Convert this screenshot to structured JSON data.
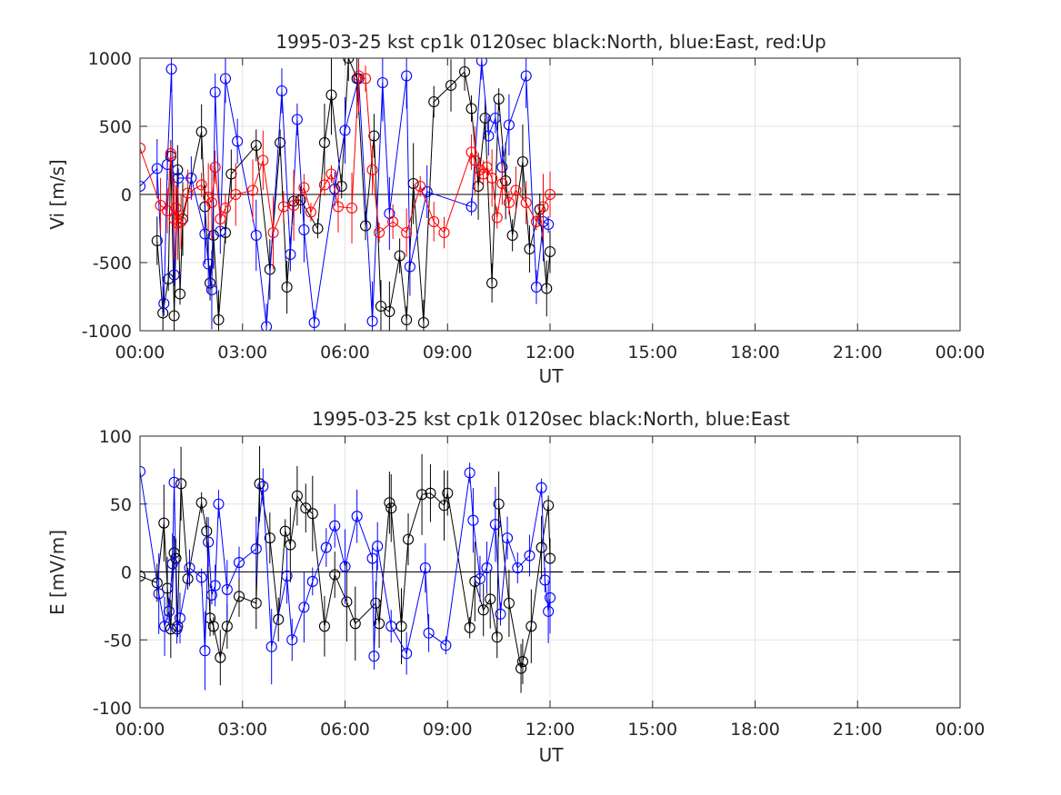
{
  "chart_data": [
    {
      "type": "line",
      "title": "1995-03-25 kst cp1k 0120sec black:North, blue:East, red:Up",
      "xlabel": "UT",
      "ylabel": "Vi [m/s]",
      "xlim": [
        0,
        24
      ],
      "ylim": [
        -1000,
        1000
      ],
      "xticks": [
        "00:00",
        "03:00",
        "06:00",
        "09:00",
        "12:00",
        "15:00",
        "18:00",
        "21:00",
        "00:00"
      ],
      "yticks": [
        "1000",
        "500",
        "0",
        "-500",
        "-1000"
      ],
      "grid": true,
      "colors": {
        "North": "#000000",
        "East": "#0000ff",
        "Up": "#ff0000"
      },
      "series": [
        {
          "color": "black",
          "error_bars": true,
          "marker": "circle",
          "x": [
            0.5,
            0.67,
            0.83,
            0.9,
            1.0,
            1.1,
            1.17,
            1.25,
            1.8,
            1.9,
            2.05,
            2.15,
            2.3,
            2.5,
            2.67,
            3.4,
            3.8,
            4.1,
            4.3,
            4.5,
            4.7,
            5.2,
            5.4,
            5.6,
            5.9,
            6.1,
            6.35,
            6.6,
            6.85,
            7.05,
            7.3,
            7.6,
            7.8,
            8.0,
            8.3,
            8.6,
            9.1,
            9.5,
            9.7,
            9.9,
            10.1,
            10.3,
            10.5,
            10.7,
            10.9,
            11.2,
            11.4,
            11.7,
            11.9,
            12.0
          ],
          "y": [
            -340,
            -870,
            -620,
            280,
            -890,
            180,
            -730,
            -180,
            460,
            -90,
            -650,
            -300,
            -920,
            -280,
            150,
            360,
            -550,
            380,
            -680,
            -50,
            -40,
            -250,
            380,
            730,
            60,
            1000,
            850,
            -230,
            430,
            -820,
            -860,
            -450,
            -920,
            80,
            -940,
            680,
            800,
            900,
            630,
            60,
            560,
            -650,
            700,
            100,
            -300,
            240,
            -400,
            -110,
            -690,
            -420
          ]
        },
        {
          "color": "blue",
          "error_bars": true,
          "marker": "circle",
          "x": [
            0.0,
            0.5,
            0.7,
            0.8,
            0.92,
            1.0,
            1.12,
            1.5,
            1.9,
            2.0,
            2.1,
            2.2,
            2.35,
            2.5,
            2.85,
            3.4,
            3.7,
            4.15,
            4.4,
            4.6,
            4.8,
            5.1,
            5.7,
            6.0,
            6.4,
            6.8,
            7.1,
            7.3,
            7.8,
            7.9,
            8.4,
            9.7,
            10.0,
            10.2,
            10.4,
            10.6,
            10.8,
            11.3,
            11.6,
            11.8,
            11.95
          ],
          "y": [
            60,
            190,
            -800,
            220,
            920,
            -590,
            120,
            120,
            -290,
            -510,
            -700,
            750,
            -270,
            850,
            390,
            -300,
            -970,
            760,
            -440,
            550,
            -260,
            -940,
            40,
            470,
            850,
            -930,
            820,
            -140,
            870,
            -530,
            20,
            -90,
            980,
            430,
            560,
            200,
            510,
            870,
            -680,
            -200,
            -220
          ]
        },
        {
          "color": "red",
          "error_bars": true,
          "marker": "circle",
          "x": [
            0.0,
            0.6,
            0.8,
            0.9,
            1.0,
            1.05,
            1.1,
            1.2,
            1.4,
            1.8,
            2.0,
            2.1,
            2.2,
            2.35,
            2.5,
            2.8,
            3.3,
            3.6,
            3.9,
            4.2,
            4.5,
            4.8,
            5.0,
            5.4,
            5.6,
            5.8,
            6.2,
            6.4,
            6.6,
            6.8,
            7.0,
            7.4,
            7.8,
            8.2,
            8.6,
            8.9,
            9.7,
            9.8,
            9.95,
            10.05,
            10.15,
            10.3,
            10.45,
            10.6,
            10.8,
            11.0,
            11.3,
            11.6,
            11.8,
            12.0
          ],
          "y": [
            340,
            -80,
            -120,
            300,
            -180,
            -100,
            -210,
            -200,
            10,
            70,
            -20,
            -60,
            200,
            -180,
            -100,
            0,
            30,
            250,
            -280,
            -90,
            -80,
            50,
            -130,
            70,
            150,
            -90,
            -100,
            870,
            850,
            180,
            -280,
            -200,
            -280,
            60,
            -200,
            -280,
            310,
            250,
            180,
            150,
            200,
            120,
            -170,
            80,
            -60,
            30,
            -60,
            -200,
            -90,
            0
          ]
        }
      ]
    },
    {
      "type": "line",
      "title": "1995-03-25 kst cp1k 0120sec black:North, blue:East",
      "xlabel": "UT",
      "ylabel": "E [mV/m]",
      "xlim": [
        0,
        24
      ],
      "ylim": [
        -100,
        100
      ],
      "xticks": [
        "00:00",
        "03:00",
        "06:00",
        "09:00",
        "12:00",
        "15:00",
        "18:00",
        "21:00",
        "00:00"
      ],
      "yticks": [
        "100",
        "50",
        "0",
        "-50",
        "-100"
      ],
      "grid": true,
      "colors": {
        "North": "#000000",
        "East": "#0000ff"
      },
      "series": [
        {
          "color": "black",
          "error_bars": true,
          "marker": "circle",
          "x": [
            0.0,
            0.5,
            0.7,
            0.8,
            0.9,
            1.0,
            1.05,
            1.1,
            1.2,
            1.4,
            1.8,
            1.95,
            2.05,
            2.15,
            2.35,
            2.55,
            2.9,
            3.4,
            3.5,
            3.8,
            4.05,
            4.25,
            4.4,
            4.6,
            4.85,
            5.05,
            5.4,
            5.7,
            6.05,
            6.3,
            6.9,
            7.0,
            7.3,
            7.35,
            7.65,
            7.85,
            8.25,
            8.5,
            8.9,
            9.0,
            9.65,
            9.8,
            10.05,
            10.25,
            10.45,
            10.5,
            10.8,
            11.15,
            11.2,
            11.45,
            11.75,
            11.95,
            12.0
          ],
          "y": [
            -3,
            -8,
            36,
            -12,
            -42,
            14,
            10,
            -40,
            65,
            -5,
            51,
            30,
            -34,
            -40,
            -63,
            -40,
            -18,
            -23,
            65,
            25,
            -35,
            30,
            20,
            56,
            47,
            43,
            -40,
            -2,
            -22,
            -38,
            -23,
            -38,
            51,
            47,
            -40,
            24,
            57,
            58,
            49,
            58,
            -41,
            -7,
            -28,
            -20,
            -48,
            50,
            -23,
            -71,
            -66,
            -40,
            18,
            49,
            10
          ]
        },
        {
          "color": "blue",
          "error_bars": true,
          "marker": "circle",
          "x": [
            0.0,
            0.55,
            0.72,
            0.85,
            0.95,
            1.0,
            1.08,
            1.17,
            1.45,
            1.8,
            1.9,
            2.0,
            2.1,
            2.2,
            2.3,
            2.55,
            2.9,
            3.4,
            3.6,
            3.85,
            4.3,
            4.45,
            4.8,
            5.05,
            5.45,
            5.7,
            6.0,
            6.35,
            6.8,
            6.85,
            6.95,
            7.35,
            7.8,
            8.35,
            8.45,
            8.95,
            9.65,
            9.75,
            9.95,
            10.15,
            10.4,
            10.55,
            10.75,
            11.05,
            11.4,
            11.75,
            11.85,
            11.95,
            12.0
          ],
          "y": [
            74,
            -16,
            -40,
            -29,
            6,
            66,
            -42,
            -34,
            3,
            -4,
            -58,
            22,
            -17,
            -10,
            50,
            -13,
            7,
            17,
            63,
            -55,
            -3,
            -50,
            -26,
            -7,
            18,
            34,
            4,
            41,
            10,
            -62,
            19,
            -40,
            -60,
            3,
            -45,
            -54,
            73,
            38,
            -5,
            3,
            35,
            -31,
            25,
            3,
            12,
            62,
            -6,
            -29,
            -19
          ]
        }
      ]
    }
  ]
}
